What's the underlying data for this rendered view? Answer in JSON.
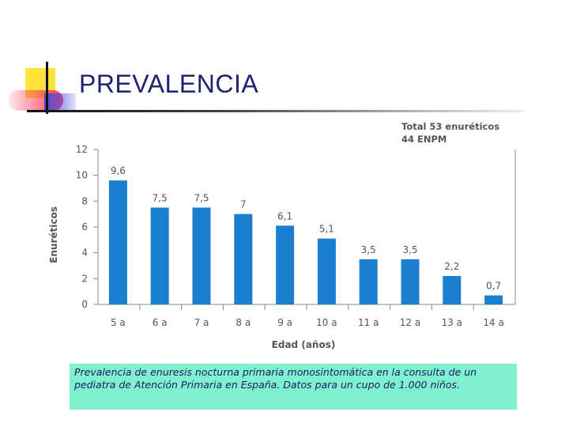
{
  "title": "PREVALENCIA",
  "caption": "Prevalencia de enuresis nocturna primaria monosintomática en la consulta de un pediatra de Atención Primaria en España. Datos para un cupo de 1.000 niños.",
  "colors": {
    "bar": "#1a7fd0",
    "title": "#1e2270",
    "caption_bg": "#7ff0d0",
    "text": "#555555"
  },
  "chart_data": {
    "type": "bar",
    "annotation_lines": [
      "Total 53 enuréticos",
      "44 ENPM"
    ],
    "xlabel": "Edad (años)",
    "ylabel": "Enuréticos",
    "categories": [
      "5 a",
      "6 a",
      "7 a",
      "8 a",
      "9 a",
      "10 a",
      "11 a",
      "12 a",
      "13 a",
      "14 a"
    ],
    "values": [
      9.6,
      7.5,
      7.5,
      7,
      6.1,
      5.1,
      3.5,
      3.5,
      2.2,
      0.7
    ],
    "value_labels": [
      "9,6",
      "7,5",
      "7,5",
      "7",
      "6,1",
      "5,1",
      "3,5",
      "3,5",
      "2,2",
      "0,7"
    ],
    "yticks": [
      0,
      2,
      4,
      6,
      8,
      10,
      12
    ],
    "ylim": [
      0,
      12
    ],
    "grid": false,
    "legend": "none"
  }
}
